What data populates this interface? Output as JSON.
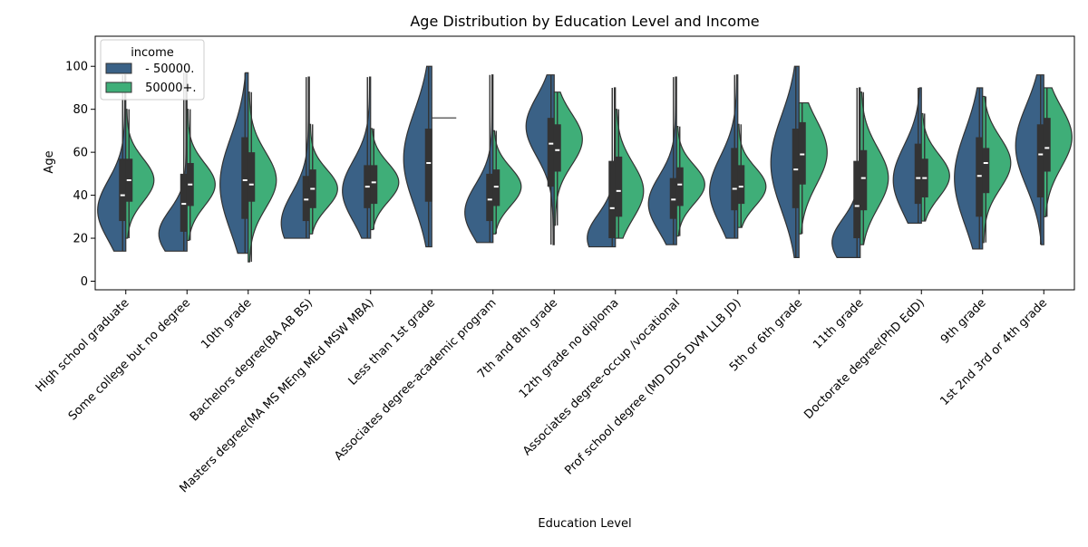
{
  "chart_data": {
    "type": "violin",
    "title": "Age Distribution by Education Level and Income",
    "xlabel": "Education Level",
    "ylabel": "Age",
    "ylim": [
      -4,
      114
    ],
    "yticks": [
      0,
      20,
      40,
      60,
      80,
      100
    ],
    "grid": false,
    "legend": {
      "title": "income",
      "placement": "top-left",
      "entries": [
        {
          "label": " - 50000.",
          "color": "#3a6186"
        },
        {
          "label": " 50000+.",
          "color": "#3fae78"
        }
      ]
    },
    "categories": [
      "High school graduate",
      "Some college but no degree",
      "10th grade",
      "Bachelors degree(BA AB BS)",
      "Masters degree(MA MS MEng MEd MSW MBA)",
      "Less than 1st grade",
      "Associates degree-academic program",
      "7th and 8th grade",
      "12th grade no diploma",
      "Associates degree-occup /vocational",
      "Prof school degree (MD DDS DVM LLB JD)",
      "5th or 6th grade",
      "11th grade",
      "Doctorate degree(PhD EdD)",
      "9th grade",
      "1st 2nd 3rd or 4th grade"
    ],
    "series": [
      {
        "name": " - 50000.",
        "color": "#3a6186",
        "stats": [
          {
            "min": 14,
            "q1": 28,
            "median": 40,
            "q3": 57,
            "max": 96,
            "mode": 33,
            "spread": 14
          },
          {
            "min": 14,
            "q1": 23,
            "median": 36,
            "q3": 50,
            "max": 97,
            "mode": 22,
            "spread": 11
          },
          {
            "min": 13,
            "q1": 29,
            "median": 47,
            "q3": 67,
            "max": 97,
            "mode": 45,
            "spread": 22
          },
          {
            "min": 20,
            "q1": 28,
            "median": 38,
            "q3": 49,
            "max": 95,
            "mode": 27,
            "spread": 14
          },
          {
            "min": 20,
            "q1": 34,
            "median": 44,
            "q3": 54,
            "max": 95,
            "mode": 42,
            "spread": 14
          },
          {
            "min": 16,
            "q1": 37,
            "median": 55,
            "q3": 71,
            "max": 100,
            "mode": 57,
            "spread": 22
          },
          {
            "min": 18,
            "q1": 28,
            "median": 38,
            "q3": 50,
            "max": 96,
            "mode": 32,
            "spread": 13
          },
          {
            "min": 17,
            "q1": 44,
            "median": 64,
            "q3": 76,
            "max": 96,
            "mode": 72,
            "spread": 14
          },
          {
            "min": 16,
            "q1": 20,
            "median": 34,
            "q3": 56,
            "max": 90,
            "mode": 20,
            "spread": 11
          },
          {
            "min": 17,
            "q1": 29,
            "median": 38,
            "q3": 48,
            "max": 95,
            "mode": 36,
            "spread": 13
          },
          {
            "min": 20,
            "q1": 33,
            "median": 43,
            "q3": 62,
            "max": 96,
            "mode": 42,
            "spread": 16
          },
          {
            "min": 11,
            "q1": 34,
            "median": 52,
            "q3": 71,
            "max": 100,
            "mode": 55,
            "spread": 22
          },
          {
            "min": 11,
            "q1": 20,
            "median": 35,
            "q3": 56,
            "max": 90,
            "mode": 18,
            "spread": 11
          },
          {
            "min": 27,
            "q1": 36,
            "median": 48,
            "q3": 64,
            "max": 90,
            "mode": 47,
            "spread": 16
          },
          {
            "min": 15,
            "q1": 30,
            "median": 49,
            "q3": 67,
            "max": 90,
            "mode": 48,
            "spread": 22
          },
          {
            "min": 17,
            "q1": 39,
            "median": 59,
            "q3": 73,
            "max": 96,
            "mode": 63,
            "spread": 19
          }
        ]
      },
      {
        "name": " 50000+.",
        "color": "#3fae78",
        "stats": [
          {
            "min": 20,
            "q1": 37,
            "median": 47,
            "q3": 57,
            "max": 80,
            "mode": 47,
            "spread": 10
          },
          {
            "min": 19,
            "q1": 35,
            "median": 45,
            "q3": 55,
            "max": 80,
            "mode": 45,
            "spread": 10
          },
          {
            "min": 9,
            "q1": 37,
            "median": 45,
            "q3": 60,
            "max": 88,
            "mode": 47,
            "spread": 13
          },
          {
            "min": 22,
            "q1": 34,
            "median": 43,
            "q3": 52,
            "max": 73,
            "mode": 43,
            "spread": 9
          },
          {
            "min": 24,
            "q1": 36,
            "median": 46,
            "q3": 54,
            "max": 71,
            "mode": 46,
            "spread": 9
          },
          {
            "min": 76,
            "q1": 76,
            "median": 76,
            "q3": 76,
            "max": 76,
            "mode": 76,
            "spread": 0
          },
          {
            "min": 22,
            "q1": 35,
            "median": 44,
            "q3": 52,
            "max": 70,
            "mode": 44,
            "spread": 9
          },
          {
            "min": 26,
            "q1": 51,
            "median": 61,
            "q3": 73,
            "max": 88,
            "mode": 66,
            "spread": 12
          },
          {
            "min": 20,
            "q1": 30,
            "median": 42,
            "q3": 58,
            "max": 80,
            "mode": 42,
            "spread": 13
          },
          {
            "min": 21,
            "q1": 35,
            "median": 45,
            "q3": 53,
            "max": 72,
            "mode": 45,
            "spread": 9
          },
          {
            "min": 25,
            "q1": 36,
            "median": 44,
            "q3": 54,
            "max": 73,
            "mode": 44,
            "spread": 9
          },
          {
            "min": 22,
            "q1": 45,
            "median": 59,
            "q3": 74,
            "max": 83,
            "mode": 60,
            "spread": 15
          },
          {
            "min": 17,
            "q1": 33,
            "median": 48,
            "q3": 61,
            "max": 88,
            "mode": 48,
            "spread": 14
          },
          {
            "min": 28,
            "q1": 39,
            "median": 48,
            "q3": 57,
            "max": 78,
            "mode": 49,
            "spread": 10
          },
          {
            "min": 18,
            "q1": 41,
            "median": 55,
            "q3": 62,
            "max": 86,
            "mode": 55,
            "spread": 12
          },
          {
            "min": 30,
            "q1": 51,
            "median": 62,
            "q3": 76,
            "max": 90,
            "mode": 67,
            "spread": 14
          }
        ]
      }
    ]
  }
}
